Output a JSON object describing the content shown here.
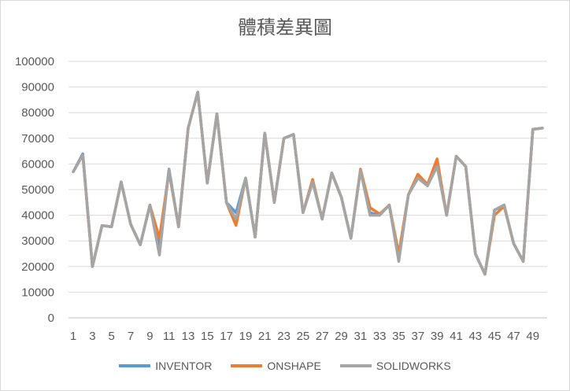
{
  "chart_data": {
    "type": "line",
    "title": "體積差異圖",
    "xlabel": "",
    "ylabel": "",
    "ylim": [
      0,
      100000
    ],
    "yticks": [
      0,
      10000,
      20000,
      30000,
      40000,
      50000,
      60000,
      70000,
      80000,
      90000,
      100000
    ],
    "x": [
      1,
      2,
      3,
      4,
      5,
      6,
      7,
      8,
      9,
      10,
      11,
      12,
      13,
      14,
      15,
      16,
      17,
      18,
      19,
      20,
      21,
      22,
      23,
      24,
      25,
      26,
      27,
      28,
      29,
      30,
      31,
      32,
      33,
      34,
      35,
      36,
      37,
      38,
      39,
      40,
      41,
      42,
      43,
      44,
      45,
      46,
      47,
      48,
      49,
      50
    ],
    "xtick_labels": [
      "1",
      "3",
      "5",
      "7",
      "9",
      "11",
      "13",
      "15",
      "17",
      "19",
      "21",
      "23",
      "25",
      "27",
      "29",
      "31",
      "33",
      "35",
      "37",
      "39",
      "41",
      "43",
      "45",
      "47",
      "49"
    ],
    "grid": "horizontal",
    "legend_position": "bottom",
    "series": [
      {
        "name": "INVENTOR",
        "color": "#5B9BD5",
        "values": [
          57000,
          64000,
          20000,
          36000,
          35500,
          53000,
          36500,
          28500,
          44000,
          28000,
          58000,
          35500,
          74000,
          88000,
          52500,
          79500,
          45000,
          41000,
          54500,
          31500,
          72000,
          45000,
          70000,
          71500,
          41000,
          53000,
          38500,
          56500,
          47000,
          31000,
          57500,
          41000,
          40000,
          44000,
          23000,
          48000,
          54500,
          51500,
          60000,
          40000,
          63000,
          59000,
          25000,
          17000,
          42000,
          44000,
          29000,
          22000,
          73500,
          74000
        ]
      },
      {
        "name": "ONSHAPE",
        "color": "#ED7D31",
        "values": [
          57000,
          63500,
          20000,
          36000,
          35500,
          53000,
          36500,
          28500,
          44000,
          31000,
          57000,
          35500,
          74000,
          88000,
          52500,
          79500,
          45000,
          36000,
          54500,
          31500,
          72000,
          45000,
          70000,
          71500,
          41000,
          54000,
          38500,
          56500,
          47000,
          31000,
          58000,
          43000,
          40500,
          44000,
          25000,
          48000,
          56000,
          52000,
          62000,
          40000,
          63000,
          59000,
          25000,
          17000,
          40000,
          43500,
          29000,
          22000,
          73500,
          74000
        ]
      },
      {
        "name": "SOLIDWORKS",
        "color": "#A5A5A5",
        "values": [
          57000,
          63500,
          20000,
          36000,
          35500,
          53000,
          36500,
          28500,
          44000,
          24500,
          58000,
          35500,
          74000,
          88000,
          52500,
          79500,
          45000,
          38500,
          54500,
          31500,
          72000,
          45000,
          70000,
          71500,
          41000,
          53000,
          38500,
          56500,
          47000,
          31000,
          57500,
          40000,
          40000,
          44000,
          22000,
          48000,
          54500,
          51500,
          59000,
          40000,
          63000,
          59000,
          25000,
          17000,
          42000,
          44000,
          29000,
          22000,
          73500,
          74000
        ]
      }
    ]
  }
}
